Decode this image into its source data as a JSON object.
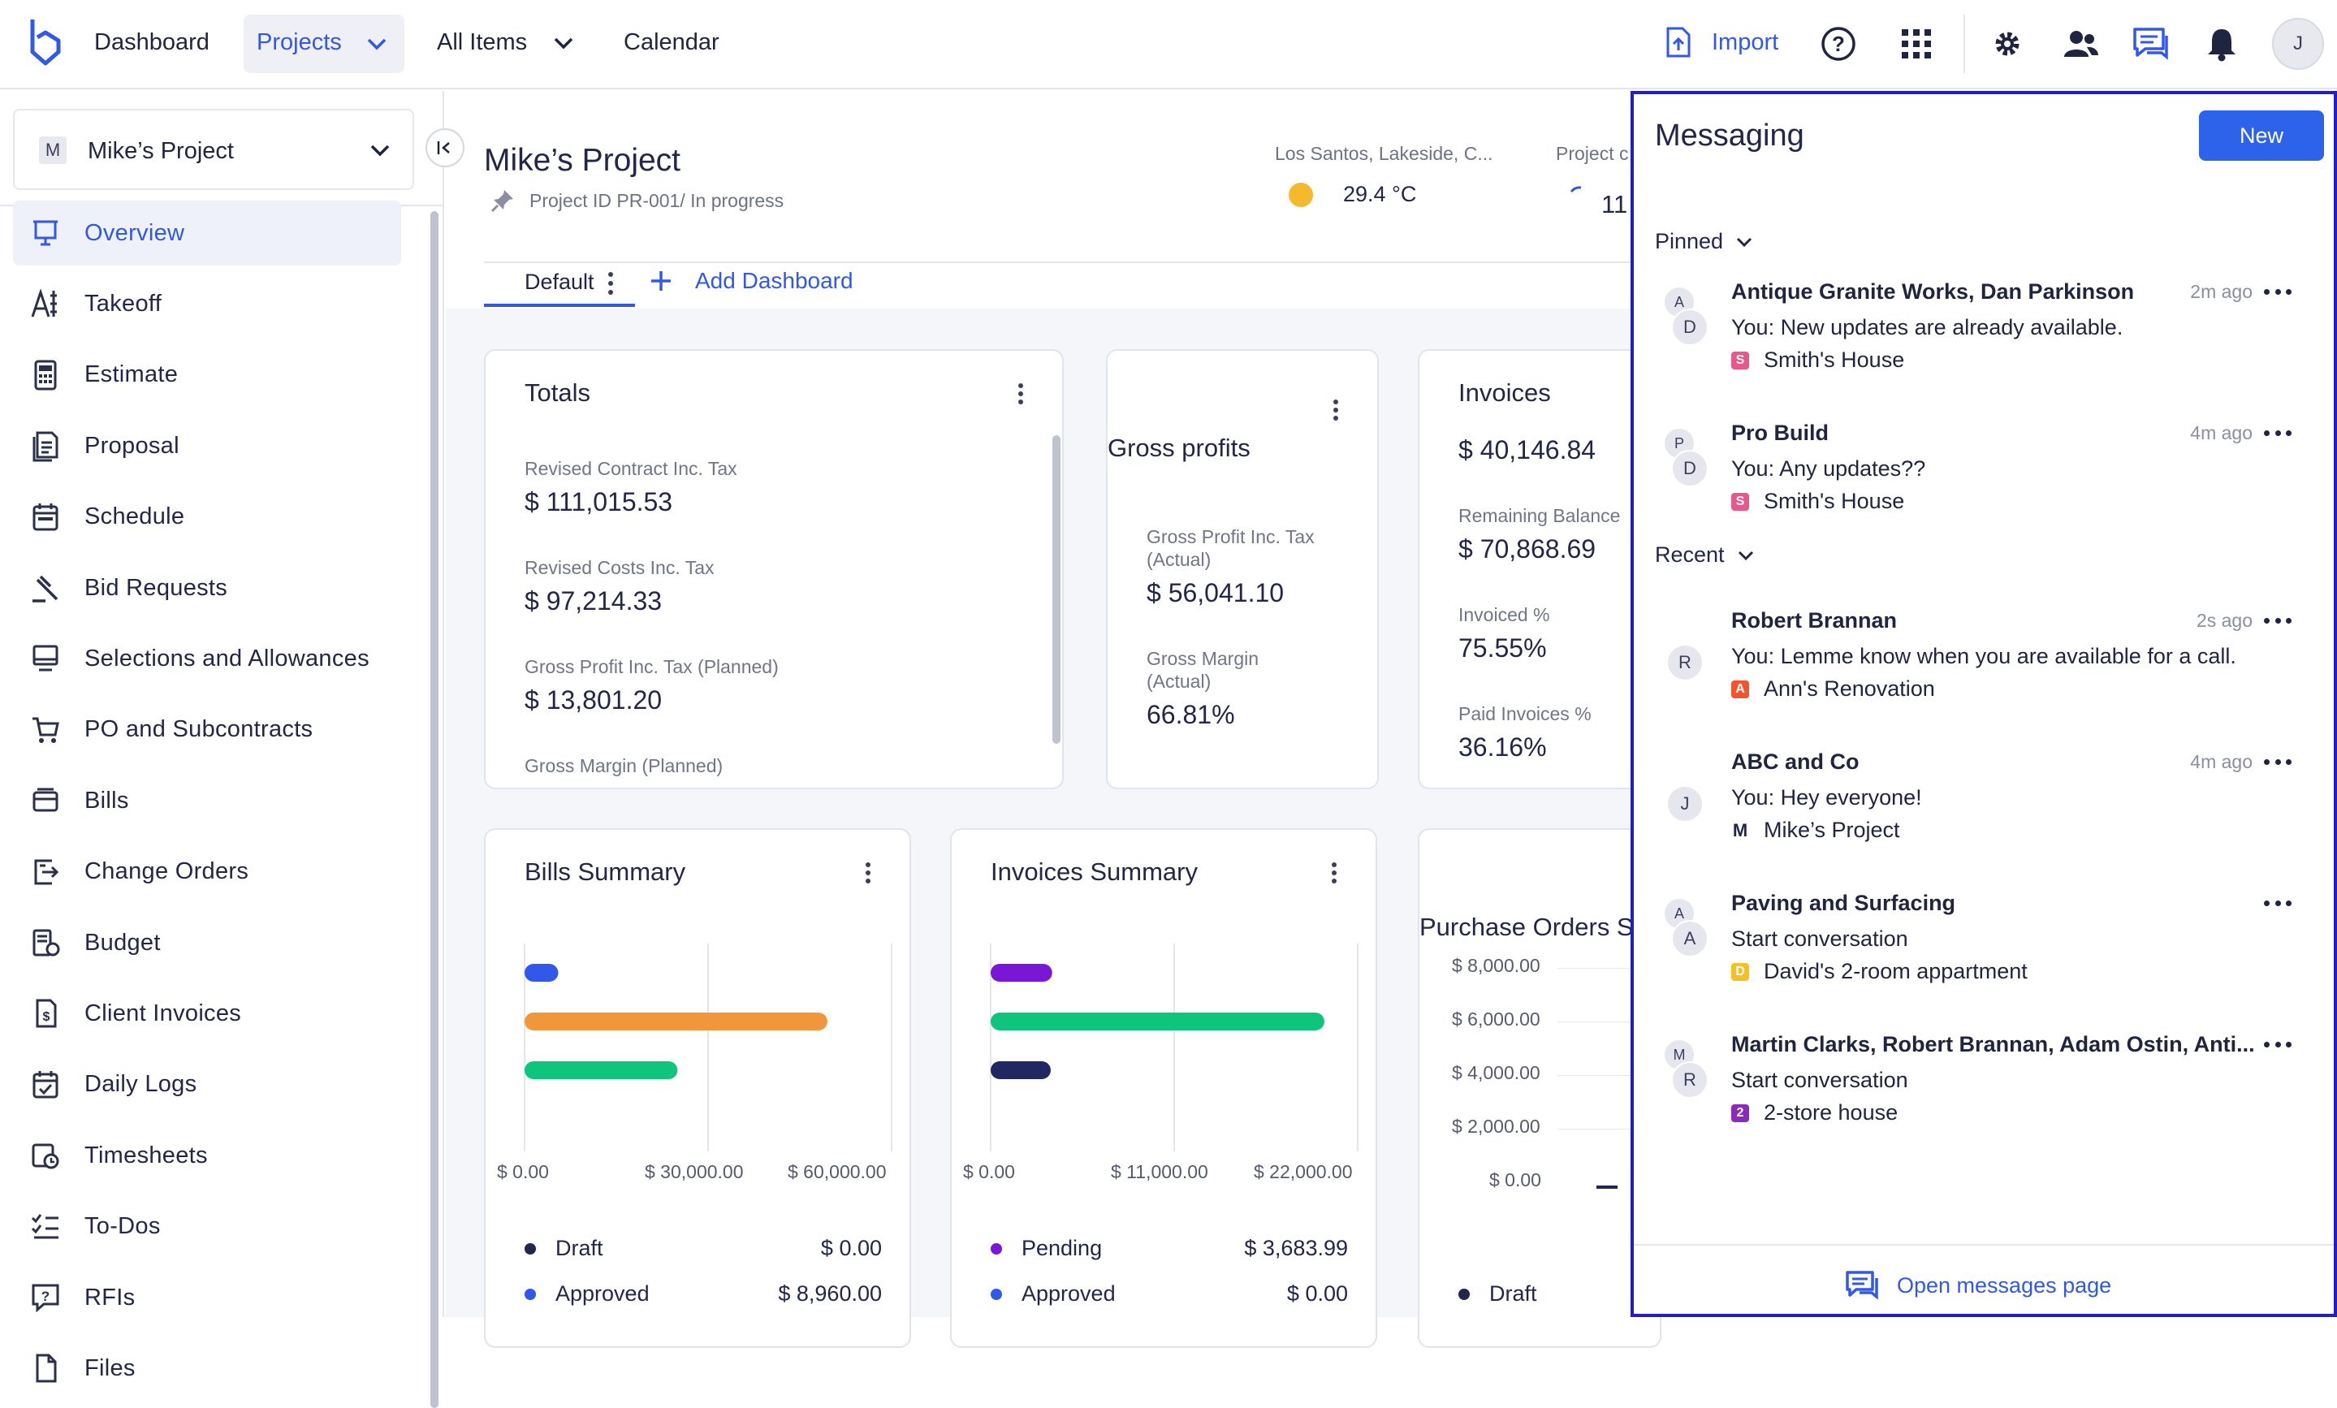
{
  "nav": {
    "dashboard": "Dashboard",
    "projects": "Projects",
    "all_items": "All Items",
    "calendar": "Calendar",
    "import": "Import",
    "avatar_initial": "J"
  },
  "sidebar": {
    "project_initial": "M",
    "project_name": "Mike’s Project",
    "items": [
      {
        "label": "Overview",
        "icon": "presentation-icon",
        "active": true
      },
      {
        "label": "Takeoff",
        "icon": "takeoff-icon"
      },
      {
        "label": "Estimate",
        "icon": "calculator-icon"
      },
      {
        "label": "Proposal",
        "icon": "proposal-icon"
      },
      {
        "label": "Schedule",
        "icon": "calendar-icon"
      },
      {
        "label": "Bid Requests",
        "icon": "gavel-icon"
      },
      {
        "label": "Selections and Allowances",
        "icon": "monitor-icon"
      },
      {
        "label": "PO and Subcontracts",
        "icon": "cart-icon"
      },
      {
        "label": "Bills",
        "icon": "bills-icon"
      },
      {
        "label": "Change Orders",
        "icon": "change-orders-icon"
      },
      {
        "label": "Budget",
        "icon": "budget-icon"
      },
      {
        "label": "Client Invoices",
        "icon": "invoice-icon"
      },
      {
        "label": "Daily Logs",
        "icon": "daily-log-icon"
      },
      {
        "label": "Timesheets",
        "icon": "timesheet-icon"
      },
      {
        "label": "To-Dos",
        "icon": "checklist-icon"
      },
      {
        "label": "RFIs",
        "icon": "rfi-icon"
      },
      {
        "label": "Files",
        "icon": "file-icon"
      }
    ]
  },
  "project": {
    "title": "Mike’s Project",
    "subtitle": "Project ID PR-001/ In progress",
    "location": "Los Santos, Lakeside, C...",
    "temperature": "29.4 °C",
    "project_label": "Project c",
    "project_value": "11"
  },
  "tabs": {
    "default": "Default",
    "add": "Add Dashboard"
  },
  "totals": {
    "title": "Totals",
    "rows": [
      {
        "label": "Revised Contract Inc. Tax",
        "value": "$ 111,015.53"
      },
      {
        "label": "Revised Costs Inc. Tax",
        "value": "$ 97,214.33"
      },
      {
        "label": "Gross Profit Inc. Tax (Planned)",
        "value": "$ 13,801.20"
      },
      {
        "label": "Gross Margin (Planned)",
        "value": ""
      }
    ]
  },
  "gross_profits": {
    "title": "Gross profits",
    "rows": [
      {
        "label1": "Gross Profit Inc. Tax",
        "label2": "(Actual)",
        "value": "$ 56,041.10"
      },
      {
        "label1": "Gross Margin",
        "label2": "(Actual)",
        "value": "66.81%"
      }
    ]
  },
  "invoices": {
    "title": "Invoices",
    "total": "$ 40,146.84",
    "rows": [
      {
        "label": "Remaining Balance",
        "value": "$ 70,868.69"
      },
      {
        "label": "Invoiced %",
        "value": "75.55%"
      },
      {
        "label": "Paid Invoices %",
        "value": "36.16%"
      }
    ]
  },
  "bills_summary": {
    "title": "Bills Summary",
    "ticks": [
      "$ 0.00",
      "$ 30,000.00",
      "$ 60,000.00"
    ],
    "legend": [
      {
        "label": "Draft",
        "value": "$ 0.00",
        "color": "#22264a"
      },
      {
        "label": "Approved",
        "value": "$ 8,960.00",
        "color": "#3158e8"
      }
    ]
  },
  "invoices_summary": {
    "title": "Invoices Summary",
    "ticks": [
      "$ 0.00",
      "$ 11,000.00",
      "$ 22,000.00"
    ],
    "legend": [
      {
        "label": "Pending",
        "value": "$ 3,683.99",
        "color": "#7a16d6"
      },
      {
        "label": "Approved",
        "value": "$ 0.00",
        "color": "#3158e8"
      }
    ]
  },
  "purchase_orders": {
    "title": "Purchase Orders S",
    "ticks": [
      "$ 8,000.00",
      "$ 6,000.00",
      "$ 4,000.00",
      "$ 2,000.00",
      "$ 0.00"
    ],
    "legend_draft": "Draft"
  },
  "chart_data": [
    {
      "type": "bar",
      "title": "Bills Summary",
      "orientation": "horizontal",
      "xlim": [
        0,
        60000
      ],
      "series": [
        {
          "color": "#3158e8",
          "value": 5500
        },
        {
          "color": "#f0973b",
          "value": 49500
        },
        {
          "color": "#0fc57e",
          "value": 25000
        }
      ]
    },
    {
      "type": "bar",
      "title": "Invoices Summary",
      "orientation": "horizontal",
      "xlim": [
        0,
        22000
      ],
      "series": [
        {
          "color": "#7a16d6",
          "value": 3683.99
        },
        {
          "color": "#0fc57e",
          "value": 20000
        },
        {
          "color": "#212761",
          "value": 3600
        }
      ]
    }
  ],
  "messaging": {
    "title": "Messaging",
    "new_button": "New",
    "pinned_label": "Pinned",
    "recent_label": "Recent",
    "footer": "Open messages page",
    "pinned": [
      {
        "name": "Antique Granite Works, Dan Parkinson",
        "time": "2m ago",
        "text": "You: New updates are already available.",
        "project": "Smith's House",
        "tag": "S",
        "tag_color": "#e8588a",
        "av1": "A",
        "av2": "D"
      },
      {
        "name": "Pro Build",
        "time": "4m ago",
        "text": "You: Any updates??",
        "project": "Smith's House",
        "tag": "S",
        "tag_color": "#e8588a",
        "av1": "P",
        "av2": "D"
      }
    ],
    "recent": [
      {
        "name": "Robert Brannan",
        "time": "2s ago",
        "text": "You: Lemme know when you are available for a call.",
        "project": "Ann's Renovation",
        "tag": "A",
        "tag_color": "#f2542d",
        "av1": "R"
      },
      {
        "name": "ABC and Co",
        "time": "4m ago",
        "text": "You: Hey everyone!",
        "project": "Mike’s Project",
        "tag": "M",
        "tag_color": "",
        "av1": "J"
      },
      {
        "name": "Paving and Surfacing",
        "time": "",
        "text": "Start conversation",
        "project": "David's 2-room appartment",
        "tag": "D",
        "tag_color": "#f5c023",
        "av1": "A",
        "av2": "A"
      },
      {
        "name": "Martin Clarks, Robert Brannan, Adam Ostin, Anti...",
        "time": "",
        "text": "Start conversation",
        "project": "2-store house",
        "tag": "2",
        "tag_color": "#8b2bb9",
        "av1": "M",
        "av2": "R"
      }
    ]
  }
}
